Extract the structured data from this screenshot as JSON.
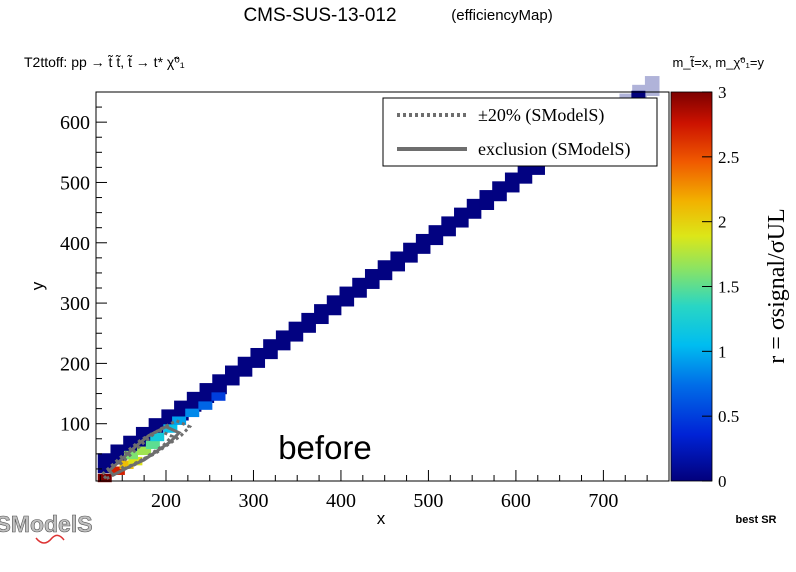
{
  "header": {
    "title": "CMS-SUS-13-012",
    "subtitle": "(efficiencyMap)",
    "process_text": "T2ttoff: pp → t̃ t̃, t̃ → t* χ̃⁰₁",
    "mass_text": "m_t̃=x, m_χ̃⁰₁=y"
  },
  "watermark": "before",
  "footer": {
    "best_sr": "best SR",
    "logo_text": "SModelS"
  },
  "colors": {
    "frame": "#000000",
    "contour": "#6e6e6e",
    "excluded_fill": "#b0b3d9"
  },
  "chart_data": {
    "type": "heatmap",
    "xlabel": "x",
    "ylabel": "y",
    "xlim": [
      120,
      775
    ],
    "ylim": [
      5,
      650
    ],
    "x_ticks": [
      200,
      300,
      400,
      500,
      600,
      700
    ],
    "y_ticks": [
      100,
      200,
      300,
      400,
      500,
      600
    ],
    "colorbar": {
      "label": "r = σsignal/σUL",
      "range": [
        0,
        3
      ],
      "ticks": [
        "0",
        "0.5",
        "1",
        "1.5",
        "2",
        "2.5",
        "3"
      ]
    },
    "legend": {
      "position": "top-right",
      "entries": [
        {
          "label": "±20% (SModelS)",
          "style": "dotted"
        },
        {
          "label": "exclusion (SModelS)",
          "style": "solid"
        }
      ]
    },
    "diagonal": {
      "description": "band of cells along y = x - 95",
      "x_start": 130,
      "x_end": 760,
      "bin_width": 16,
      "band_height_bins": 2
    },
    "cells": [
      {
        "x": 130,
        "y": 10,
        "r": 3.0
      },
      {
        "x": 145,
        "y": 22,
        "r": 2.7
      },
      {
        "x": 155,
        "y": 32,
        "r": 2.1
      },
      {
        "x": 165,
        "y": 38,
        "r": 1.9
      },
      {
        "x": 160,
        "y": 48,
        "r": 1.6
      },
      {
        "x": 175,
        "y": 55,
        "r": 1.7
      },
      {
        "x": 185,
        "y": 65,
        "r": 1.5
      },
      {
        "x": 190,
        "y": 78,
        "r": 1.2
      },
      {
        "x": 205,
        "y": 92,
        "r": 1.1
      },
      {
        "x": 215,
        "y": 105,
        "r": 0.95
      },
      {
        "x": 230,
        "y": 118,
        "r": 0.85
      },
      {
        "x": 245,
        "y": 130,
        "r": 0.7
      },
      {
        "x": 260,
        "y": 145,
        "r": 0.5
      },
      {
        "x": 740,
        "y": 645,
        "r": 0.0
      }
    ],
    "exclusion_contour": [
      [
        140,
        15
      ],
      [
        160,
        30
      ],
      [
        175,
        40
      ],
      [
        190,
        55
      ],
      [
        205,
        70
      ],
      [
        215,
        85
      ],
      [
        200,
        95
      ],
      [
        180,
        80
      ],
      [
        165,
        62
      ],
      [
        150,
        42
      ],
      [
        135,
        22
      ]
    ],
    "excluded_region_start_x": 650
  }
}
